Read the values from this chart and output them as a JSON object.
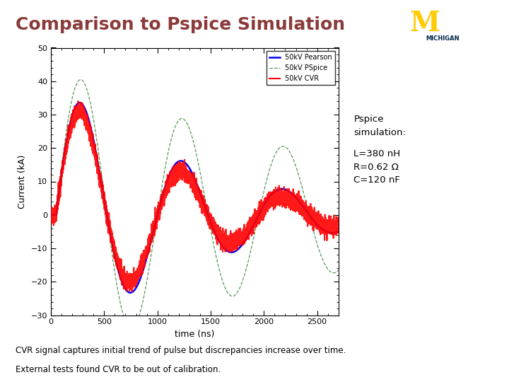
{
  "title": "Comparison to Pspice Simulation",
  "title_color": "#8B3A3A",
  "title_fontsize": 18,
  "header_bg_color": "#8A9BA8",
  "background_color": "#ffffff",
  "xlabel": "time (ns)",
  "ylabel": "Current (kA)",
  "xlim": [
    0,
    2700
  ],
  "ylim": [
    -30,
    50
  ],
  "yticks": [
    -30,
    -20,
    -10,
    0,
    10,
    20,
    30,
    40,
    50
  ],
  "xticks": [
    0,
    500,
    1000,
    1500,
    2000,
    2500
  ],
  "legend_entries": [
    "50kV Pearson",
    "50kV PSpice",
    "50kV CVR"
  ],
  "pspice_text_line1": "Pspice",
  "pspice_text_line2": "simulation:",
  "pspice_text_line3": "",
  "pspice_text_line4": "L=380 nH",
  "pspice_text_line5": "R=0.62 Ω",
  "pspice_text_line6": "C=120 nF",
  "footer_text1": "CVR signal captures initial trend of pulse but discrepancies increase over time.",
  "footer_text2": "External tests found CVR to be out of calibration.",
  "michigan_text": "MICHIGAN",
  "michigan_color": "#00274C",
  "michigan_M_color": "#FFCB05",
  "pearson_amp": 40.0,
  "pearson_tau": 1300.0,
  "pearson_period": 950.0,
  "pspice_amp": 44.0,
  "pspice_tau": 2800.0,
  "pspice_period": 950.0,
  "cvr_amp": 38.0,
  "cvr_tau": 1100.0,
  "cvr_period": 950.0,
  "noise_std": 1.2
}
